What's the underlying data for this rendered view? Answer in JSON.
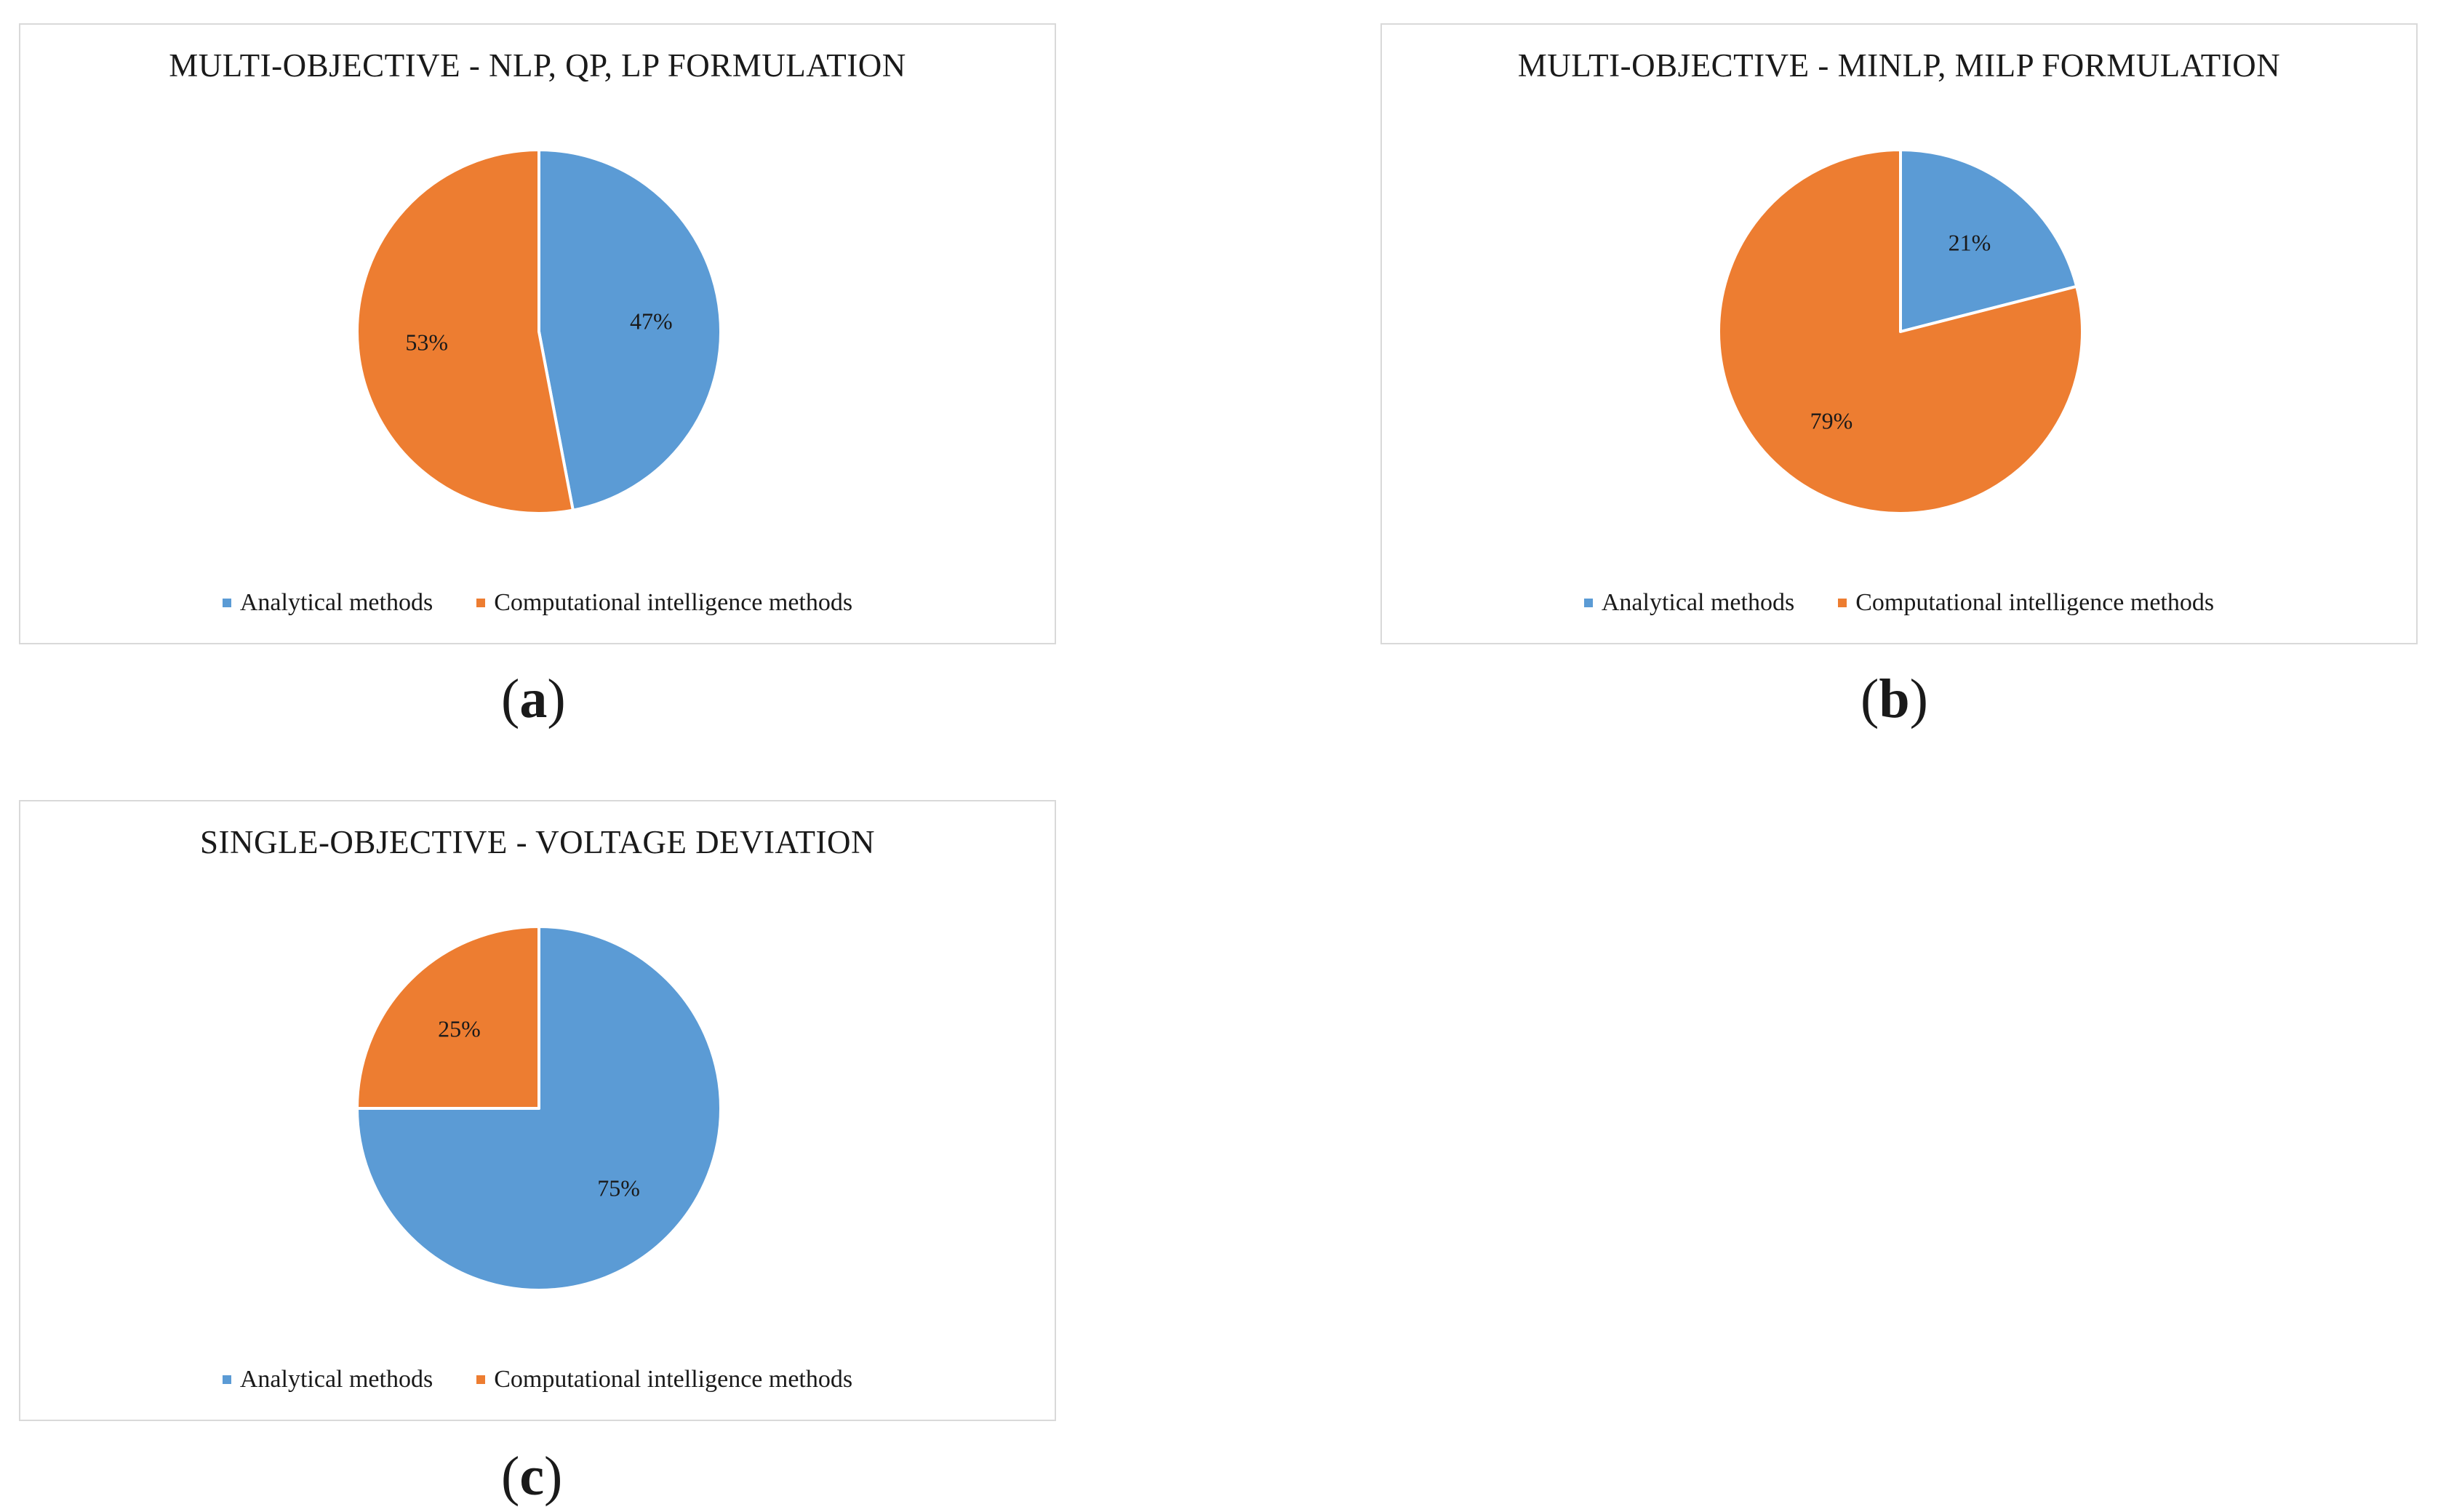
{
  "colors": {
    "analytical": "#5b9bd5",
    "computational": "#ed7d31",
    "border": "#d9d9d9"
  },
  "legend": {
    "analytical": "Analytical methods",
    "computational": "Computational intelligence methods"
  },
  "panels": [
    {
      "paren_open": "(",
      "letter": "a",
      "paren_close": ")"
    },
    {
      "paren_open": "(",
      "letter": "b",
      "paren_close": ")"
    },
    {
      "paren_open": "(",
      "letter": "c",
      "paren_close": ")"
    }
  ],
  "chart_data": [
    {
      "type": "pie",
      "title": "MULTI-OBJECTIVE - NLP, QP, LP FORMULATION",
      "categories": [
        "Analytical methods",
        "Computational intelligence methods"
      ],
      "values": [
        47,
        53
      ],
      "labels": [
        "47%",
        "53%"
      ],
      "legend_position": "bottom"
    },
    {
      "type": "pie",
      "title": "MULTI-OBJECTIVE - MINLP, MILP FORMULATION",
      "categories": [
        "Analytical methods",
        "Computational intelligence methods"
      ],
      "values": [
        21,
        79
      ],
      "labels": [
        "21%",
        "79%"
      ],
      "legend_position": "bottom"
    },
    {
      "type": "pie",
      "title": "SINGLE-OBJECTIVE - VOLTAGE DEVIATION",
      "categories": [
        "Analytical methods",
        "Computational intelligence methods"
      ],
      "values": [
        75,
        25
      ],
      "labels": [
        "75%",
        "25%"
      ],
      "legend_position": "bottom"
    }
  ]
}
